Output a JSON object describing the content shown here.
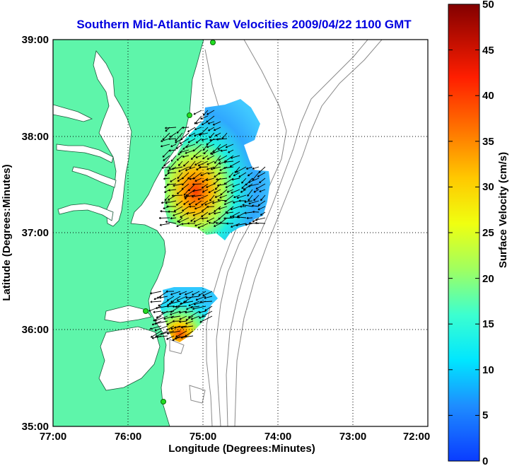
{
  "title": "Southern Mid-Atlantic Raw Velocities 2009/04/22 1100 GMT",
  "x_axis": {
    "label": "Longitude (Degrees:Minutes)",
    "ticks": [
      "77:00",
      "76:00",
      "75:00",
      "74:00",
      "73:00",
      "72:00"
    ]
  },
  "y_axis": {
    "label": "Latitude (Degrees:Minutes)",
    "ticks": [
      "39:00",
      "38:00",
      "37:00",
      "36:00",
      "35:00"
    ]
  },
  "colorbar": {
    "label": "Surface Velocity (cm/s)",
    "min": 0,
    "max": 50,
    "ticks": [
      "50",
      "45",
      "40",
      "35",
      "30",
      "25",
      "20",
      "15",
      "10",
      "5",
      "0"
    ]
  },
  "map": {
    "extent": {
      "lon_min": -77,
      "lon_max": -72,
      "lat_min": 35,
      "lat_max": 39
    },
    "grid": "dotted",
    "land_color": "#5ef5aa",
    "water_color": "#ffffff",
    "bathymetry_color": "#8a8a8a",
    "site_marker_color": "#22dd22",
    "vector_color": "#000000"
  }
}
